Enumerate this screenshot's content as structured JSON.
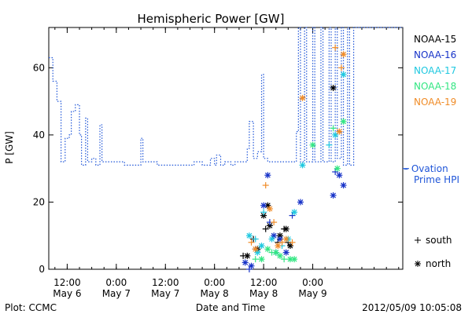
{
  "chart_data": {
    "type": "scatter",
    "title": "Hemispheric Power [GW]",
    "ylabel": "P [GW]",
    "xlabel": "Date and Time",
    "ylim": [
      0,
      72
    ],
    "yticks": [
      0,
      20,
      40,
      60
    ],
    "xlim": [
      "2012-05-06 07:30",
      "2012-05-09 22:00"
    ],
    "xticks": [
      {
        "time": "2012-05-06 12:00",
        "line1": "12:00",
        "line2": "May 6"
      },
      {
        "time": "2012-05-07 00:00",
        "line1": "0:00",
        "line2": "May 7"
      },
      {
        "time": "2012-05-07 12:00",
        "line1": "12:00",
        "line2": "May 7"
      },
      {
        "time": "2012-05-08 00:00",
        "line1": "0:00",
        "line2": "May 8"
      },
      {
        "time": "2012-05-08 12:00",
        "line1": "12:00",
        "line2": "May 8"
      },
      {
        "time": "2012-05-09 00:00",
        "line1": "0:00",
        "line2": "May 9"
      }
    ],
    "footer_left": "Plot: CCMC",
    "footer_right": "2012/05/09 10:05:08",
    "ovation_label_1": "– Ovation",
    "ovation_label_2": "Prime HPI",
    "marker_legend": [
      {
        "symbol": "+",
        "label": "south"
      },
      {
        "symbol": "*",
        "label": "north"
      }
    ],
    "ovation": {
      "name": "Ovation Prime HPI",
      "color": "#1f55d8",
      "steps": [
        [
          "2012-05-06 07:30",
          63
        ],
        [
          "2012-05-06 08:30",
          56
        ],
        [
          "2012-05-06 09:30",
          50
        ],
        [
          "2012-05-06 10:30",
          32
        ],
        [
          "2012-05-06 11:30",
          39
        ],
        [
          "2012-05-06 12:30",
          40
        ],
        [
          "2012-05-06 13:00",
          47
        ],
        [
          "2012-05-06 14:00",
          49
        ],
        [
          "2012-05-06 15:00",
          40
        ],
        [
          "2012-05-06 15:30",
          31
        ],
        [
          "2012-05-06 16:30",
          45
        ],
        [
          "2012-05-06 17:00",
          32
        ],
        [
          "2012-05-06 18:00",
          33
        ],
        [
          "2012-05-06 19:00",
          31
        ],
        [
          "2012-05-06 20:00",
          43
        ],
        [
          "2012-05-06 20:30",
          32
        ],
        [
          "2012-05-06 23:00",
          32
        ],
        [
          "2012-05-07 02:00",
          31
        ],
        [
          "2012-05-07 05:00",
          31
        ],
        [
          "2012-05-07 06:00",
          39
        ],
        [
          "2012-05-07 06:30",
          32
        ],
        [
          "2012-05-07 09:00",
          32
        ],
        [
          "2012-05-07 10:00",
          31
        ],
        [
          "2012-05-07 14:00",
          31
        ],
        [
          "2012-05-07 16:00",
          31
        ],
        [
          "2012-05-07 18:00",
          31
        ],
        [
          "2012-05-07 19:00",
          32
        ],
        [
          "2012-05-07 21:00",
          31
        ],
        [
          "2012-05-07 23:00",
          33
        ],
        [
          "2012-05-08 00:00",
          31
        ],
        [
          "2012-05-08 00:30",
          34
        ],
        [
          "2012-05-08 01:30",
          31
        ],
        [
          "2012-05-08 02:30",
          32
        ],
        [
          "2012-05-08 04:00",
          31
        ],
        [
          "2012-05-08 05:00",
          32
        ],
        [
          "2012-05-08 07:00",
          32
        ],
        [
          "2012-05-08 08:00",
          36
        ],
        [
          "2012-05-08 08:30",
          44
        ],
        [
          "2012-05-08 09:30",
          33
        ],
        [
          "2012-05-08 10:30",
          35
        ],
        [
          "2012-05-08 11:30",
          58
        ],
        [
          "2012-05-08 12:00",
          33
        ],
        [
          "2012-05-08 13:00",
          32
        ],
        [
          "2012-05-08 16:00",
          32
        ],
        [
          "2012-05-08 17:00",
          32
        ],
        [
          "2012-05-08 19:00",
          32
        ],
        [
          "2012-05-08 20:00",
          41
        ],
        [
          "2012-05-08 20:30",
          72
        ],
        [
          "2012-05-08 21:00",
          32
        ],
        [
          "2012-05-08 22:00",
          72
        ],
        [
          "2012-05-08 22:30",
          32
        ],
        [
          "2012-05-09 00:00",
          72
        ],
        [
          "2012-05-09 00:30",
          32
        ],
        [
          "2012-05-09 02:00",
          72
        ],
        [
          "2012-05-09 02:30",
          32
        ],
        [
          "2012-05-09 04:00",
          72
        ],
        [
          "2012-05-09 04:30",
          32
        ],
        [
          "2012-05-09 05:30",
          72
        ],
        [
          "2012-05-09 06:00",
          33
        ],
        [
          "2012-05-09 07:00",
          72
        ],
        [
          "2012-05-09 07:30",
          31
        ],
        [
          "2012-05-09 08:30",
          72
        ],
        [
          "2012-05-09 09:00",
          31
        ],
        [
          "2012-05-09 10:00",
          72
        ]
      ]
    },
    "series": [
      {
        "name": "NOAA-15",
        "color": "#000000",
        "points": [
          [
            "2012-05-08 07:00",
            4,
            "+"
          ],
          [
            "2012-05-08 08:00",
            4,
            "*"
          ],
          [
            "2012-05-08 09:30",
            9,
            "+"
          ],
          [
            "2012-05-08 10:30",
            6,
            "*"
          ],
          [
            "2012-05-08 12:00",
            16,
            "*"
          ],
          [
            "2012-05-08 12:30",
            12,
            "+"
          ],
          [
            "2012-05-08 13:00",
            19,
            "*"
          ],
          [
            "2012-05-08 13:30",
            13,
            "*"
          ],
          [
            "2012-05-08 15:30",
            8,
            "+"
          ],
          [
            "2012-05-08 16:00",
            10,
            "*"
          ],
          [
            "2012-05-08 17:00",
            12,
            "+"
          ],
          [
            "2012-05-08 17:30",
            12,
            "*"
          ],
          [
            "2012-05-08 18:00",
            8,
            "+"
          ],
          [
            "2012-05-08 18:30",
            7,
            "*"
          ],
          [
            "2012-05-09 05:00",
            54,
            "*"
          ]
        ]
      },
      {
        "name": "NOAA-16",
        "color": "#1733c8",
        "points": [
          [
            "2012-05-08 07:30",
            2,
            "*"
          ],
          [
            "2012-05-08 08:30",
            0,
            "+"
          ],
          [
            "2012-05-08 09:00",
            1,
            "*"
          ],
          [
            "2012-05-08 10:00",
            6,
            "+"
          ],
          [
            "2012-05-08 12:00",
            19,
            "*"
          ],
          [
            "2012-05-08 13:00",
            28,
            "*"
          ],
          [
            "2012-05-08 13:30",
            14,
            "+"
          ],
          [
            "2012-05-08 14:30",
            10,
            "*"
          ],
          [
            "2012-05-08 15:00",
            5,
            "+"
          ],
          [
            "2012-05-08 16:00",
            9,
            "*"
          ],
          [
            "2012-05-08 17:30",
            5,
            "*"
          ],
          [
            "2012-05-08 19:00",
            16,
            "+"
          ],
          [
            "2012-05-08 21:00",
            20,
            "*"
          ],
          [
            "2012-05-09 05:00",
            22,
            "*"
          ],
          [
            "2012-05-09 05:30",
            29,
            "+"
          ],
          [
            "2012-05-09 06:30",
            28,
            "*"
          ],
          [
            "2012-05-09 07:30",
            25,
            "*"
          ]
        ]
      },
      {
        "name": "NOAA-17",
        "color": "#1fc8e0",
        "points": [
          [
            "2012-05-08 08:30",
            10,
            "*"
          ],
          [
            "2012-05-08 10:00",
            9,
            "+"
          ],
          [
            "2012-05-08 10:30",
            5,
            "*"
          ],
          [
            "2012-05-08 11:30",
            7,
            "*"
          ],
          [
            "2012-05-08 12:00",
            17,
            "+"
          ],
          [
            "2012-05-08 14:00",
            9,
            "*"
          ],
          [
            "2012-05-08 15:00",
            5,
            "*"
          ],
          [
            "2012-05-08 16:30",
            7,
            "+"
          ],
          [
            "2012-05-08 18:00",
            9,
            "*"
          ],
          [
            "2012-05-08 19:30",
            17,
            "*"
          ],
          [
            "2012-05-08 21:30",
            31,
            "*"
          ],
          [
            "2012-05-09 04:00",
            37,
            "+"
          ],
          [
            "2012-05-09 05:30",
            40,
            "*"
          ],
          [
            "2012-05-09 07:30",
            58,
            "*"
          ]
        ]
      },
      {
        "name": "NOAA-18",
        "color": "#32e682",
        "points": [
          [
            "2012-05-08 10:00",
            3,
            "+"
          ],
          [
            "2012-05-08 11:30",
            3,
            "*"
          ],
          [
            "2012-05-08 13:00",
            6,
            "*"
          ],
          [
            "2012-05-08 14:00",
            5,
            "+"
          ],
          [
            "2012-05-08 15:00",
            5,
            "*"
          ],
          [
            "2012-05-08 16:00",
            4,
            "*"
          ],
          [
            "2012-05-08 17:00",
            3,
            "+"
          ],
          [
            "2012-05-08 18:30",
            3,
            "*"
          ],
          [
            "2012-05-08 19:30",
            3,
            "*"
          ],
          [
            "2012-05-09 00:00",
            37,
            "*"
          ],
          [
            "2012-05-09 05:00",
            42,
            "+"
          ],
          [
            "2012-05-09 06:00",
            30,
            "*"
          ],
          [
            "2012-05-09 07:30",
            44,
            "*"
          ]
        ]
      },
      {
        "name": "NOAA-19",
        "color": "#f08c28",
        "points": [
          [
            "2012-05-08 09:00",
            8,
            "+"
          ],
          [
            "2012-05-08 10:00",
            6,
            "*"
          ],
          [
            "2012-05-08 12:30",
            25,
            "+"
          ],
          [
            "2012-05-08 13:30",
            18,
            "*"
          ],
          [
            "2012-05-08 14:30",
            14,
            "+"
          ],
          [
            "2012-05-08 15:30",
            7,
            "*"
          ],
          [
            "2012-05-08 16:30",
            8,
            "+"
          ],
          [
            "2012-05-08 17:30",
            9,
            "*"
          ],
          [
            "2012-05-08 19:00",
            8,
            "+"
          ],
          [
            "2012-05-08 21:30",
            51,
            "*"
          ],
          [
            "2012-05-09 05:30",
            66,
            "+"
          ],
          [
            "2012-05-09 06:30",
            41,
            "*"
          ],
          [
            "2012-05-09 07:00",
            60,
            "+"
          ],
          [
            "2012-05-09 07:30",
            64,
            "*"
          ]
        ]
      }
    ]
  }
}
